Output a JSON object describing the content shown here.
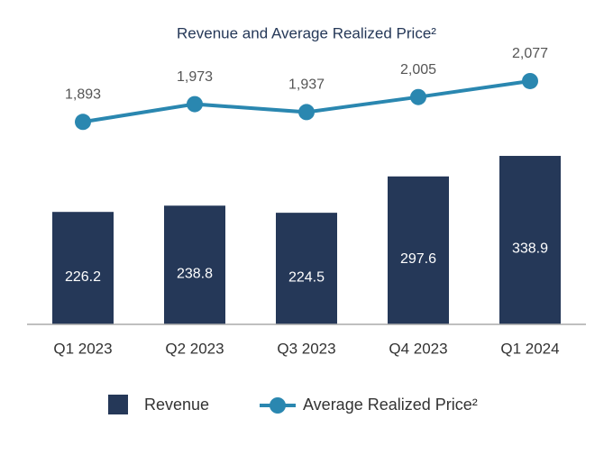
{
  "chart_data": {
    "type": "bar_line",
    "title": "Revenue and Average Realized Price²",
    "categories": [
      "Q1 2023",
      "Q2 2023",
      "Q3 2023",
      "Q4 2023",
      "Q1 2024"
    ],
    "series": [
      {
        "name": "Revenue",
        "type": "bar",
        "color": "#253858",
        "values": [
          226.2,
          238.8,
          224.5,
          297.6,
          338.9
        ]
      },
      {
        "name": "Average Realized Price²",
        "type": "line",
        "axis": "y2",
        "color": "#2a87b0",
        "values": [
          1893,
          1973,
          1937,
          2005,
          2077
        ],
        "value_labels": [
          "1,893",
          "1,973",
          "1,937",
          "2,005",
          "2,077"
        ]
      }
    ],
    "ylim": [
      0,
      580
    ],
    "y2lim": [
      980,
      2280
    ],
    "legend": "bottom"
  }
}
